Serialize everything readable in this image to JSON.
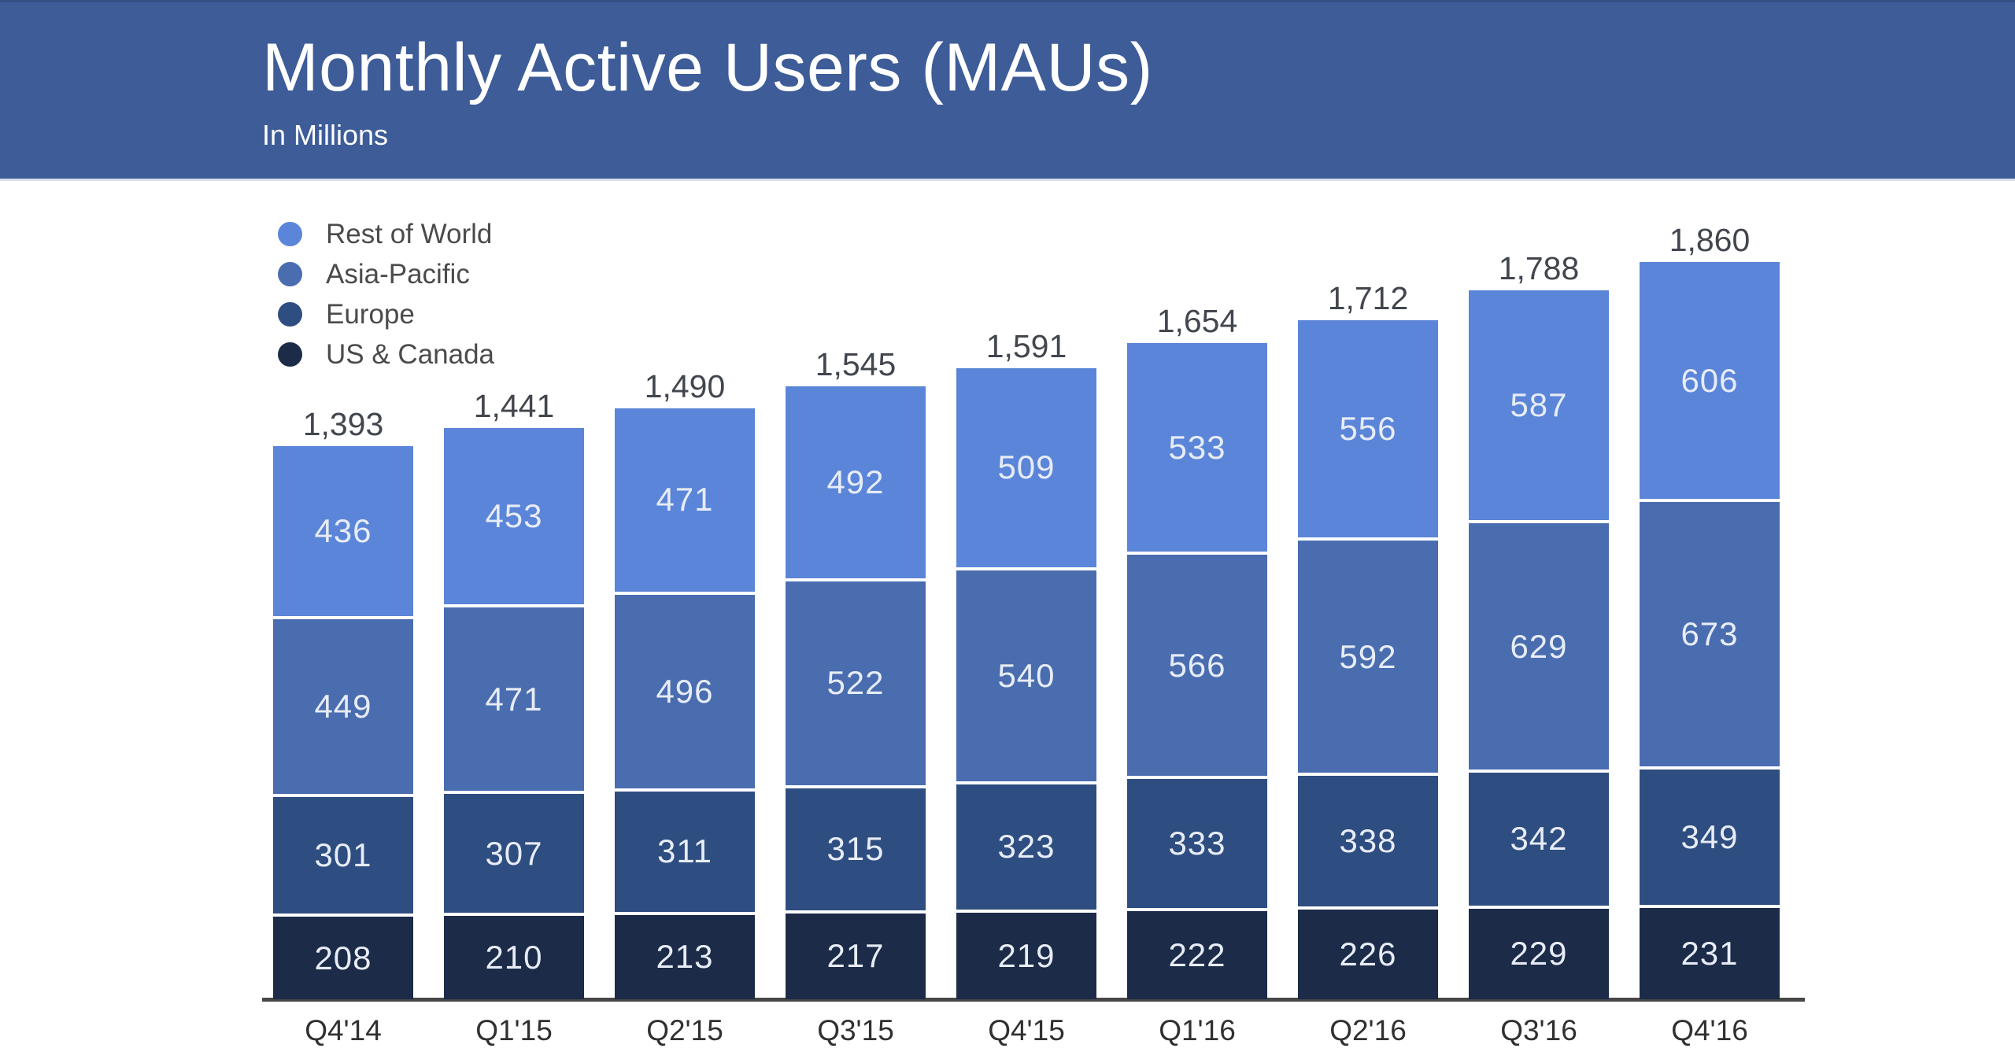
{
  "header": {
    "title": "Monthly Active Users (MAUs)",
    "subtitle": "In Millions",
    "bg_color": "#3d5c98",
    "text_color": "#ffffff"
  },
  "chart_data": {
    "type": "bar",
    "stacked": true,
    "title": "Monthly Active Users (MAUs)",
    "subtitle": "In Millions",
    "unit": "millions",
    "grid": false,
    "legend_position": "top-left",
    "categories": [
      "Q4'14",
      "Q1'15",
      "Q2'15",
      "Q3'15",
      "Q4'15",
      "Q1'16",
      "Q2'16",
      "Q3'16",
      "Q4'16"
    ],
    "series": [
      {
        "name": "Rest of World",
        "color": "#5b85d8",
        "values": [
          436,
          453,
          471,
          492,
          509,
          533,
          556,
          587,
          606
        ]
      },
      {
        "name": "Asia-Pacific",
        "color": "#4a6db0",
        "values": [
          449,
          471,
          496,
          522,
          540,
          566,
          592,
          629,
          673
        ]
      },
      {
        "name": "Europe",
        "color": "#2e4d80",
        "values": [
          301,
          307,
          311,
          315,
          323,
          333,
          338,
          342,
          349
        ]
      },
      {
        "name": "US & Canada",
        "color": "#1b2b48",
        "values": [
          208,
          210,
          213,
          217,
          219,
          222,
          226,
          229,
          231
        ]
      }
    ],
    "totals": [
      "1,393",
      "1,441",
      "1,490",
      "1,545",
      "1,591",
      "1,654",
      "1,712",
      "1,788",
      "1,860"
    ],
    "colors": {
      "axis_line": "#474747",
      "total_label": "#42464e",
      "tick_label": "#303030",
      "segment_label": "#e7ecf6",
      "legend_label": "#4b4b4b"
    }
  }
}
